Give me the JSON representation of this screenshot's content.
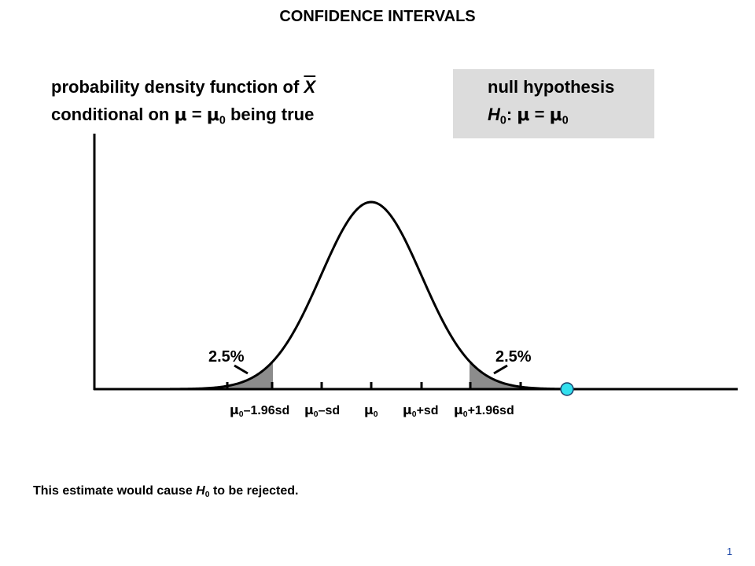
{
  "title": "CONFIDENCE INTERVALS",
  "pdf_caption": {
    "line1_prefix": "probability density function of ",
    "line1_var": "X",
    "line2_prefix": "conditional on ",
    "mu": "μ",
    "equals": " = ",
    "mu0": "μ",
    "zero_sub": "0",
    "line2_suffix": " being true"
  },
  "null_box": {
    "title": "null hypothesis",
    "h": "H",
    "h_sub": "0",
    "colon": ": ",
    "mu": "μ",
    "equals": " = ",
    "mu0": "μ",
    "mu0_sub": "0"
  },
  "tail_labels": {
    "left": "2.5%",
    "right": "2.5%"
  },
  "tick_labels": [
    {
      "mu": "μ",
      "sub": "0",
      "suffix": "–1.96sd"
    },
    {
      "mu": "μ",
      "sub": "0",
      "suffix": "–sd"
    },
    {
      "mu": "μ",
      "sub": "0",
      "suffix": ""
    },
    {
      "mu": "μ",
      "sub": "0",
      "suffix": "+sd"
    },
    {
      "mu": "μ",
      "sub": "0",
      "suffix": "+1.96sd"
    }
  ],
  "note": {
    "prefix": "This estimate would cause ",
    "h": "H",
    "h_sub": "0",
    "suffix": " to be rejected."
  },
  "page_number": "1",
  "colors": {
    "shade": "#8c8c8c",
    "null_box_bg": "#dcdcdc",
    "estimate_marker": "#33e0ee",
    "page_number": "#1f4aa8"
  }
}
